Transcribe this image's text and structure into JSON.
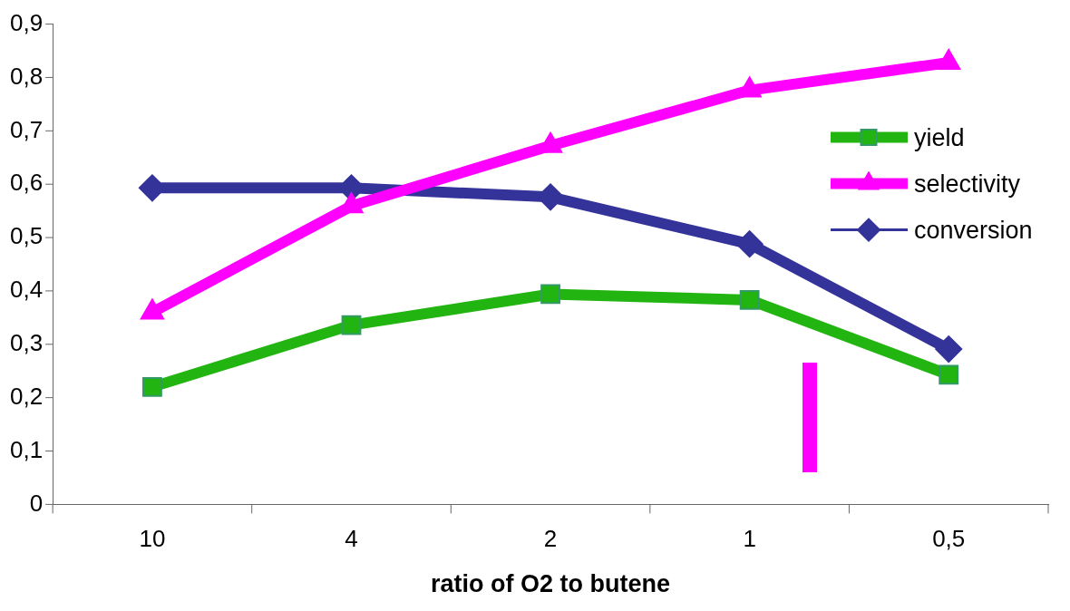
{
  "chart_data": {
    "type": "line",
    "xlabel": "ratio of O2 to butene",
    "categories": [
      "10",
      "4",
      "2",
      "1",
      "0,5"
    ],
    "series": [
      {
        "name": "yield",
        "color": "#22b511",
        "values": [
          0.22,
          0.336,
          0.394,
          0.383,
          0.243
        ],
        "marker": "square"
      },
      {
        "name": "selectivity",
        "color": "#ff00ff",
        "values": [
          0.36,
          0.559,
          0.672,
          0.776,
          0.828
        ],
        "marker": "triangle"
      },
      {
        "name": "conversion",
        "color": "#333399",
        "values": [
          0.593,
          0.593,
          0.576,
          0.488,
          0.291
        ],
        "marker": "diamond"
      }
    ],
    "ylim": [
      0,
      0.9
    ],
    "yticks": [
      {
        "value": 0,
        "label": "0"
      },
      {
        "value": 0.1,
        "label": "0,1"
      },
      {
        "value": 0.2,
        "label": "0,2"
      },
      {
        "value": 0.3,
        "label": "0,3"
      },
      {
        "value": 0.4,
        "label": "0,4"
      },
      {
        "value": 0.5,
        "label": "0,5"
      },
      {
        "value": 0.6,
        "label": "0,6"
      },
      {
        "value": 0.7,
        "label": "0,7"
      },
      {
        "value": 0.8,
        "label": "0,8"
      },
      {
        "value": 0.9,
        "label": "0,9"
      }
    ],
    "grid": false,
    "legend": "right"
  }
}
